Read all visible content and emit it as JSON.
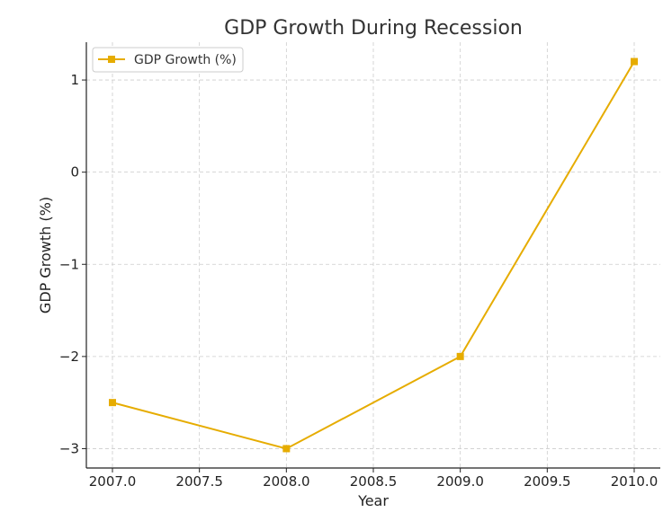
{
  "chart_data": {
    "type": "line",
    "title": "GDP Growth During Recession",
    "xlabel": "Year",
    "ylabel": "GDP Growth (%)",
    "x": [
      2007,
      2008,
      2009,
      2010
    ],
    "series": [
      {
        "name": "GDP Growth (%)",
        "values": [
          -2.5,
          -3.0,
          -2.0,
          1.2
        ],
        "color": "#e6ac00",
        "marker": "square"
      }
    ],
    "xlim": [
      2006.85,
      2010.15
    ],
    "ylim": [
      -3.21,
      1.41
    ],
    "xticks": [
      2007.0,
      2007.5,
      2008.0,
      2008.5,
      2009.0,
      2009.5,
      2010.0
    ],
    "xtick_labels": [
      "2007.0",
      "2007.5",
      "2008.0",
      "2008.5",
      "2009.0",
      "2009.5",
      "2010.0"
    ],
    "yticks": [
      -3,
      -2,
      -1,
      0,
      1
    ],
    "ytick_labels": [
      "−3",
      "−2",
      "−1",
      "0",
      "1"
    ],
    "grid": true,
    "legend_position": "top-left"
  }
}
